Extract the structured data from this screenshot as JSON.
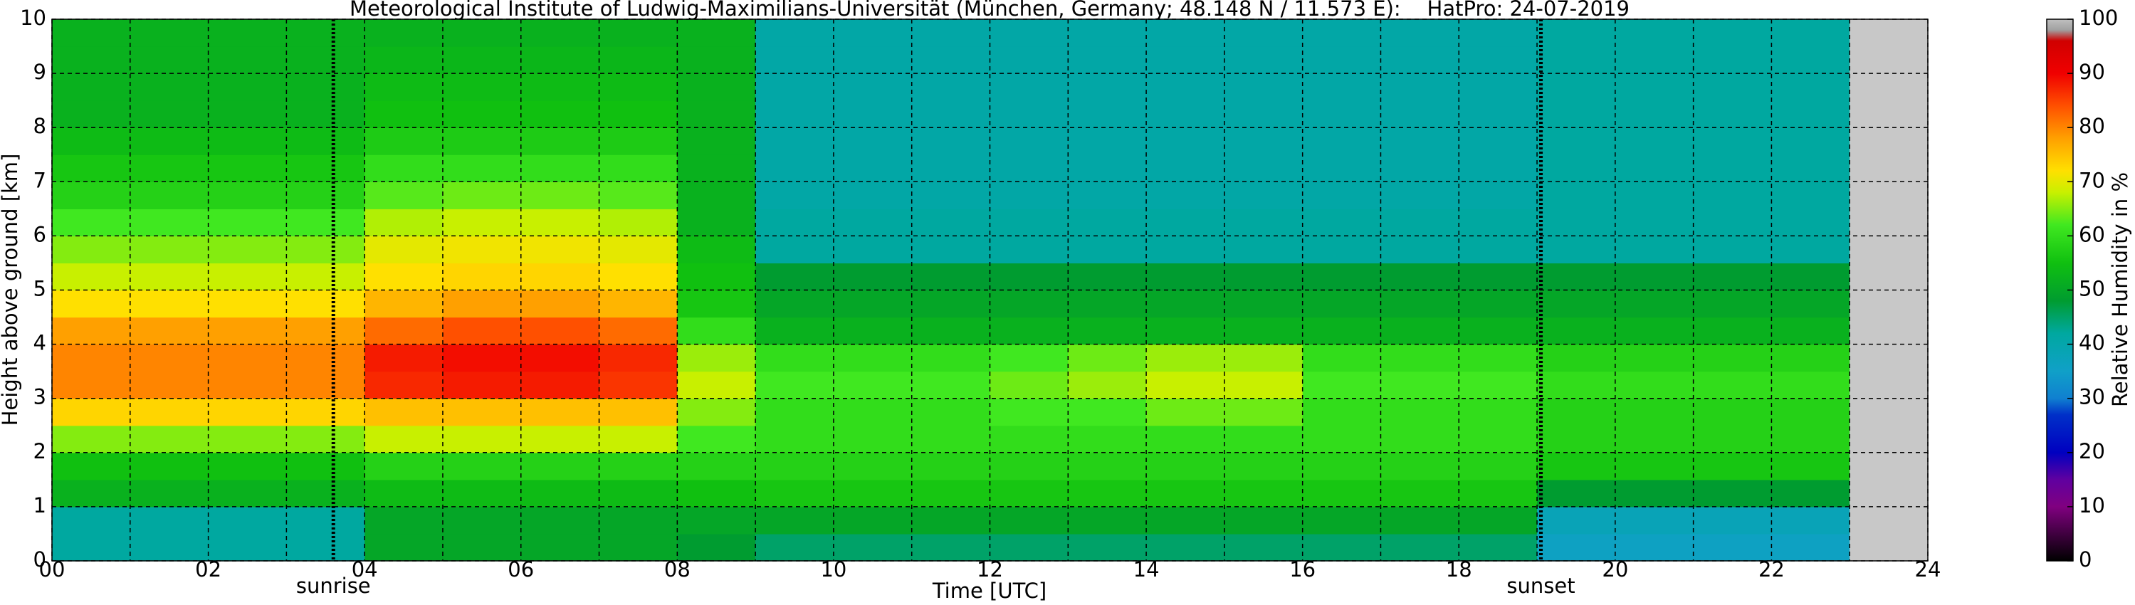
{
  "chart_data": {
    "type": "heatmap",
    "title": "Meteorological Institute of Ludwig-Maximilians-Universität (München, Germany; 48.148 N / 11.573 E):    HatPro: 24-07-2019",
    "xlabel": "Time [UTC]",
    "ylabel": "Height above ground [km]",
    "colorbar_label": "Relative Humidity in %",
    "xlim": [
      0,
      24
    ],
    "ylim": [
      0,
      10
    ],
    "xticks": [
      {
        "value": 0,
        "label": "00"
      },
      {
        "value": 2,
        "label": "02"
      },
      {
        "value": 4,
        "label": "04"
      },
      {
        "value": 6,
        "label": "06"
      },
      {
        "value": 8,
        "label": "08"
      },
      10,
      12,
      14,
      16,
      18,
      20,
      22,
      24
    ],
    "xminorticks": [
      1,
      3,
      5,
      7,
      9,
      11,
      13,
      15,
      17,
      19,
      21,
      23
    ],
    "yticks": [
      0,
      1,
      2,
      3,
      4,
      5,
      6,
      7,
      8,
      9,
      10
    ],
    "grid": true,
    "clim": [
      0,
      100
    ],
    "cticks": [
      0,
      10,
      20,
      30,
      40,
      50,
      60,
      70,
      80,
      90,
      100
    ],
    "colormap": [
      {
        "value": 0,
        "color": "#000000"
      },
      {
        "value": 5,
        "color": "#400040"
      },
      {
        "value": 10,
        "color": "#800080"
      },
      {
        "value": 15,
        "color": "#6000a0"
      },
      {
        "value": 20,
        "color": "#0000c0"
      },
      {
        "value": 27,
        "color": "#0030c8"
      },
      {
        "value": 30,
        "color": "#1080d0"
      },
      {
        "value": 35,
        "color": "#10a0c8"
      },
      {
        "value": 42,
        "color": "#00a8a0"
      },
      {
        "value": 48,
        "color": "#009c30"
      },
      {
        "value": 55,
        "color": "#10c010"
      },
      {
        "value": 62,
        "color": "#40e820"
      },
      {
        "value": 68,
        "color": "#c8f000"
      },
      {
        "value": 72,
        "color": "#ffe000"
      },
      {
        "value": 78,
        "color": "#ffa000"
      },
      {
        "value": 84,
        "color": "#ff5000"
      },
      {
        "value": 90,
        "color": "#f00000"
      },
      {
        "value": 96,
        "color": "#d00000"
      },
      {
        "value": 98,
        "color": "#a0a0a0"
      },
      {
        "value": 100,
        "color": "#c0c0c0"
      }
    ],
    "nodata_range": [
      23,
      24
    ],
    "nodata_color": "#c8c8c8",
    "annotations": [
      {
        "x": 3.6,
        "label": "sunrise"
      },
      {
        "x": 19.05,
        "label": "sunset"
      }
    ],
    "xbins": [
      0,
      1,
      2,
      3,
      4,
      5,
      6,
      7,
      8,
      9,
      10,
      11,
      12,
      13,
      14,
      15,
      16,
      17,
      18,
      19,
      20,
      21,
      22,
      23
    ],
    "ybins": [
      0,
      0.5,
      1,
      1.5,
      2,
      2.5,
      3,
      3.5,
      4,
      4.5,
      5,
      5.5,
      6,
      6.5,
      7,
      7.5,
      8,
      8.5,
      9,
      9.5,
      10
    ],
    "values": [
      [
        42,
        42,
        42,
        42,
        50,
        50,
        50,
        50,
        48,
        45,
        45,
        45,
        45,
        45,
        45,
        45,
        45,
        45,
        45,
        36,
        36,
        36,
        36
      ],
      [
        42,
        42,
        42,
        42,
        50,
        50,
        50,
        50,
        50,
        50,
        50,
        50,
        50,
        50,
        50,
        50,
        50,
        50,
        50,
        38,
        38,
        38,
        38
      ],
      [
        52,
        52,
        52,
        52,
        54,
        54,
        54,
        54,
        55,
        56,
        56,
        56,
        56,
        56,
        56,
        56,
        56,
        56,
        56,
        48,
        48,
        48,
        48
      ],
      [
        55,
        55,
        55,
        55,
        58,
        58,
        58,
        58,
        58,
        58,
        58,
        58,
        58,
        58,
        58,
        58,
        58,
        58,
        58,
        56,
        56,
        56,
        56
      ],
      [
        65,
        65,
        65,
        65,
        68,
        68,
        68,
        68,
        62,
        60,
        60,
        60,
        60,
        60,
        60,
        60,
        60,
        60,
        60,
        58,
        58,
        58,
        58
      ],
      [
        73,
        73,
        73,
        73,
        75,
        75,
        75,
        75,
        65,
        60,
        60,
        60,
        62,
        62,
        64,
        64,
        60,
        60,
        60,
        58,
        58,
        58,
        58
      ],
      [
        80,
        80,
        80,
        80,
        87,
        88,
        88,
        86,
        68,
        62,
        62,
        62,
        64,
        66,
        68,
        68,
        62,
        62,
        62,
        60,
        60,
        60,
        60
      ],
      [
        80,
        80,
        80,
        80,
        88,
        89,
        89,
        87,
        66,
        60,
        60,
        60,
        62,
        64,
        66,
        66,
        60,
        60,
        60,
        58,
        58,
        58,
        58
      ],
      [
        78,
        78,
        78,
        78,
        82,
        84,
        84,
        82,
        60,
        52,
        52,
        52,
        52,
        52,
        52,
        52,
        52,
        52,
        52,
        52,
        52,
        52,
        52
      ],
      [
        72,
        72,
        72,
        72,
        76,
        78,
        78,
        76,
        56,
        50,
        50,
        50,
        50,
        50,
        50,
        50,
        50,
        50,
        50,
        50,
        50,
        50,
        50
      ],
      [
        68,
        68,
        68,
        68,
        72,
        73,
        73,
        72,
        55,
        48,
        48,
        48,
        48,
        48,
        48,
        48,
        48,
        48,
        48,
        48,
        48,
        48,
        48
      ],
      [
        65,
        65,
        65,
        65,
        70,
        71,
        71,
        70,
        54,
        42,
        42,
        42,
        42,
        42,
        42,
        42,
        42,
        42,
        42,
        42,
        42,
        42,
        42
      ],
      [
        62,
        62,
        62,
        62,
        67,
        68,
        68,
        67,
        52,
        42,
        42,
        42,
        42,
        42,
        42,
        42,
        42,
        42,
        42,
        42,
        42,
        42,
        42
      ],
      [
        58,
        58,
        58,
        58,
        63,
        64,
        64,
        63,
        52,
        41,
        41,
        41,
        41,
        41,
        41,
        41,
        41,
        41,
        41,
        42,
        42,
        42,
        42
      ],
      [
        56,
        56,
        56,
        56,
        60,
        60,
        60,
        60,
        52,
        41,
        41,
        41,
        41,
        41,
        41,
        41,
        41,
        41,
        41,
        42,
        42,
        42,
        42
      ],
      [
        54,
        54,
        54,
        54,
        57,
        57,
        57,
        57,
        52,
        41,
        41,
        41,
        41,
        41,
        41,
        41,
        41,
        41,
        41,
        42,
        42,
        42,
        42
      ],
      [
        52,
        52,
        52,
        52,
        55,
        55,
        55,
        55,
        52,
        41,
        41,
        41,
        41,
        41,
        41,
        41,
        41,
        41,
        41,
        42,
        42,
        42,
        42
      ],
      [
        52,
        52,
        52,
        52,
        54,
        54,
        54,
        54,
        52,
        41,
        41,
        41,
        41,
        41,
        41,
        41,
        41,
        41,
        41,
        42,
        42,
        42,
        42
      ],
      [
        52,
        52,
        52,
        52,
        53,
        53,
        53,
        53,
        52,
        41,
        41,
        41,
        41,
        41,
        41,
        41,
        41,
        41,
        41,
        42,
        42,
        42,
        42
      ],
      [
        52,
        52,
        52,
        52,
        52,
        52,
        52,
        52,
        52,
        41,
        41,
        41,
        41,
        41,
        41,
        41,
        41,
        41,
        41,
        42,
        42,
        42,
        42
      ]
    ]
  }
}
